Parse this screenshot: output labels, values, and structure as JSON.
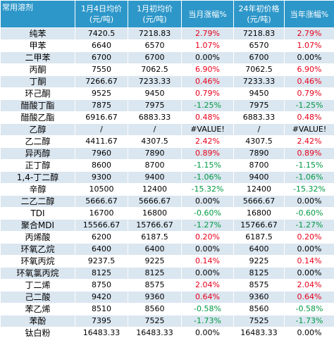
{
  "header": {
    "col0": "常用溶剂",
    "col1_line1": "1月4日均价",
    "col1_line2": "(元/吨)",
    "col2_line1": "1月初均价",
    "col2_line2": "(元/吨)",
    "col3": "当月涨幅%",
    "col4_line1": "24年初价格",
    "col4_line2": "(元/吨)",
    "col5": "当年涨幅%"
  },
  "colors": {
    "header_bg": "#2e97c9",
    "stripe_bg": "#dae6f0",
    "up": "#e8001c",
    "down": "#009944",
    "flat": "#000000"
  },
  "rows": [
    {
      "name": "纯苯",
      "jan4": "7420.5",
      "jan_start": "7218.83",
      "month_chg": "2.79%",
      "start24": "7218.83",
      "year_chg": "2.79%",
      "trend": "red"
    },
    {
      "name": "甲苯",
      "jan4": "6640",
      "jan_start": "6570",
      "month_chg": "1.07%",
      "start24": "6570",
      "year_chg": "1.07%",
      "trend": "red"
    },
    {
      "name": "二甲苯",
      "jan4": "6700",
      "jan_start": "6700",
      "month_chg": "0.00%",
      "start24": "6700",
      "year_chg": "0.00%",
      "trend": "black"
    },
    {
      "name": "丙酮",
      "jan4": "7550",
      "jan_start": "7062.5",
      "month_chg": "6.90%",
      "start24": "7062.5",
      "year_chg": "6.90%",
      "trend": "red"
    },
    {
      "name": "丁酮",
      "jan4": "7266.67",
      "jan_start": "7233.33",
      "month_chg": "0.46%",
      "start24": "7233.33",
      "year_chg": "0.46%",
      "trend": "red"
    },
    {
      "name": "环己酮",
      "jan4": "9525",
      "jan_start": "9450",
      "month_chg": "0.79%",
      "start24": "9450",
      "year_chg": "0.79%",
      "trend": "red"
    },
    {
      "name": "醋酸丁酯",
      "jan4": "7875",
      "jan_start": "7975",
      "month_chg": "-1.25%",
      "start24": "7975",
      "year_chg": "-1.25%",
      "trend": "green"
    },
    {
      "name": "醋酸乙酯",
      "jan4": "6916.67",
      "jan_start": "6883.33",
      "month_chg": "0.48%",
      "start24": "6883.33",
      "year_chg": "0.48%",
      "trend": "red"
    },
    {
      "name": "乙醇",
      "jan4": "/",
      "jan_start": "/",
      "month_chg": "#VALUE!",
      "start24": "/",
      "year_chg": "#VALUE!",
      "trend": "black"
    },
    {
      "name": "乙二醇",
      "jan4": "4411.67",
      "jan_start": "4307.5",
      "month_chg": "2.42%",
      "start24": "4307.5",
      "year_chg": "2.42%",
      "trend": "red"
    },
    {
      "name": "异丙醇",
      "jan4": "7960",
      "jan_start": "7890",
      "month_chg": "0.89%",
      "start24": "7890",
      "year_chg": "0.89%",
      "trend": "red"
    },
    {
      "name": "正丁醇",
      "jan4": "8600",
      "jan_start": "8700",
      "month_chg": "-1.15%",
      "start24": "8700",
      "year_chg": "-1.15%",
      "trend": "green"
    },
    {
      "name": "1,4-丁二醇",
      "jan4": "9300",
      "jan_start": "9400",
      "month_chg": "-1.06%",
      "start24": "9400",
      "year_chg": "-1.06%",
      "trend": "green"
    },
    {
      "name": "辛醇",
      "jan4": "10500",
      "jan_start": "12400",
      "month_chg": "-15.32%",
      "start24": "12400",
      "year_chg": "-15.32%",
      "trend": "green"
    },
    {
      "name": "二乙二醇",
      "jan4": "5666.67",
      "jan_start": "5666.67",
      "month_chg": "0.00%",
      "start24": "5666.67",
      "year_chg": "0.00%",
      "trend": "black"
    },
    {
      "name": "TDI",
      "jan4": "16700",
      "jan_start": "16800",
      "month_chg": "-0.60%",
      "start24": "16800",
      "year_chg": "-0.60%",
      "trend": "green"
    },
    {
      "name": "聚合MDI",
      "jan4": "15566.67",
      "jan_start": "15766.67",
      "month_chg": "-1.27%",
      "start24": "15766.67",
      "year_chg": "-1.27%",
      "trend": "green"
    },
    {
      "name": "丙烯酸",
      "jan4": "6200",
      "jan_start": "6187.5",
      "month_chg": "0.20%",
      "start24": "6187.5",
      "year_chg": "0.20%",
      "trend": "red"
    },
    {
      "name": "环氧乙烷",
      "jan4": "6400",
      "jan_start": "6400",
      "month_chg": "0.00%",
      "start24": "6400",
      "year_chg": "0.00%",
      "trend": "black"
    },
    {
      "name": "环氧丙烷",
      "jan4": "9237.5",
      "jan_start": "9225",
      "month_chg": "0.14%",
      "start24": "9225",
      "year_chg": "0.14%",
      "trend": "red"
    },
    {
      "name": "环氧氯丙烷",
      "jan4": "8125",
      "jan_start": "8125",
      "month_chg": "0.00%",
      "start24": "8125",
      "year_chg": "0.00%",
      "trend": "black"
    },
    {
      "name": "丁二烯",
      "jan4": "8750",
      "jan_start": "8575",
      "month_chg": "2.04%",
      "start24": "8575",
      "year_chg": "2.04%",
      "trend": "red"
    },
    {
      "name": "己二酸",
      "jan4": "9420",
      "jan_start": "9360",
      "month_chg": "0.64%",
      "start24": "9360",
      "year_chg": "0.64%",
      "trend": "red"
    },
    {
      "name": "苯乙烯",
      "jan4": "8510",
      "jan_start": "8560",
      "month_chg": "-0.58%",
      "start24": "8560",
      "year_chg": "-0.58%",
      "trend": "green"
    },
    {
      "name": "苯酚",
      "jan4": "7395",
      "jan_start": "7525",
      "month_chg": "-1.73%",
      "start24": "7525",
      "year_chg": "-1.73%",
      "trend": "green"
    },
    {
      "name": "钛白粉",
      "jan4": "16483.33",
      "jan_start": "16483.33",
      "month_chg": "0.00%",
      "start24": "16483.33",
      "year_chg": "0.00%",
      "trend": "black"
    }
  ]
}
